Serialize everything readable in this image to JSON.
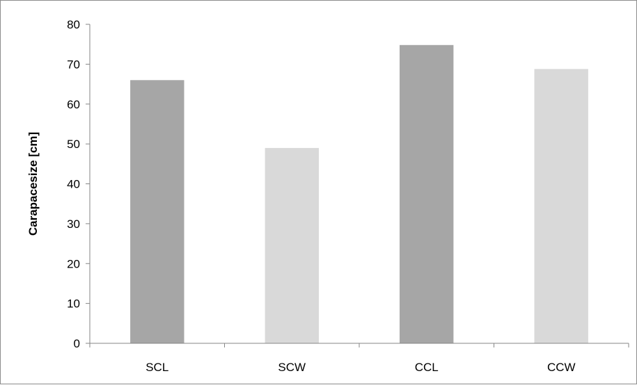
{
  "chart_data": {
    "type": "bar",
    "title": "",
    "xlabel": "",
    "ylabel": "Carapacesize [cm]",
    "categories": [
      "SCL",
      "SCW",
      "CCL",
      "CCW"
    ],
    "values": [
      66,
      49,
      74.8,
      68.8
    ],
    "bar_colors": [
      "#a6a6a6",
      "#d9d9d9",
      "#a6a6a6",
      "#d9d9d9"
    ],
    "ylim": [
      0,
      80
    ],
    "yticks": [
      0,
      10,
      20,
      30,
      40,
      50,
      60,
      70,
      80
    ],
    "grid": false,
    "legend": "none"
  }
}
